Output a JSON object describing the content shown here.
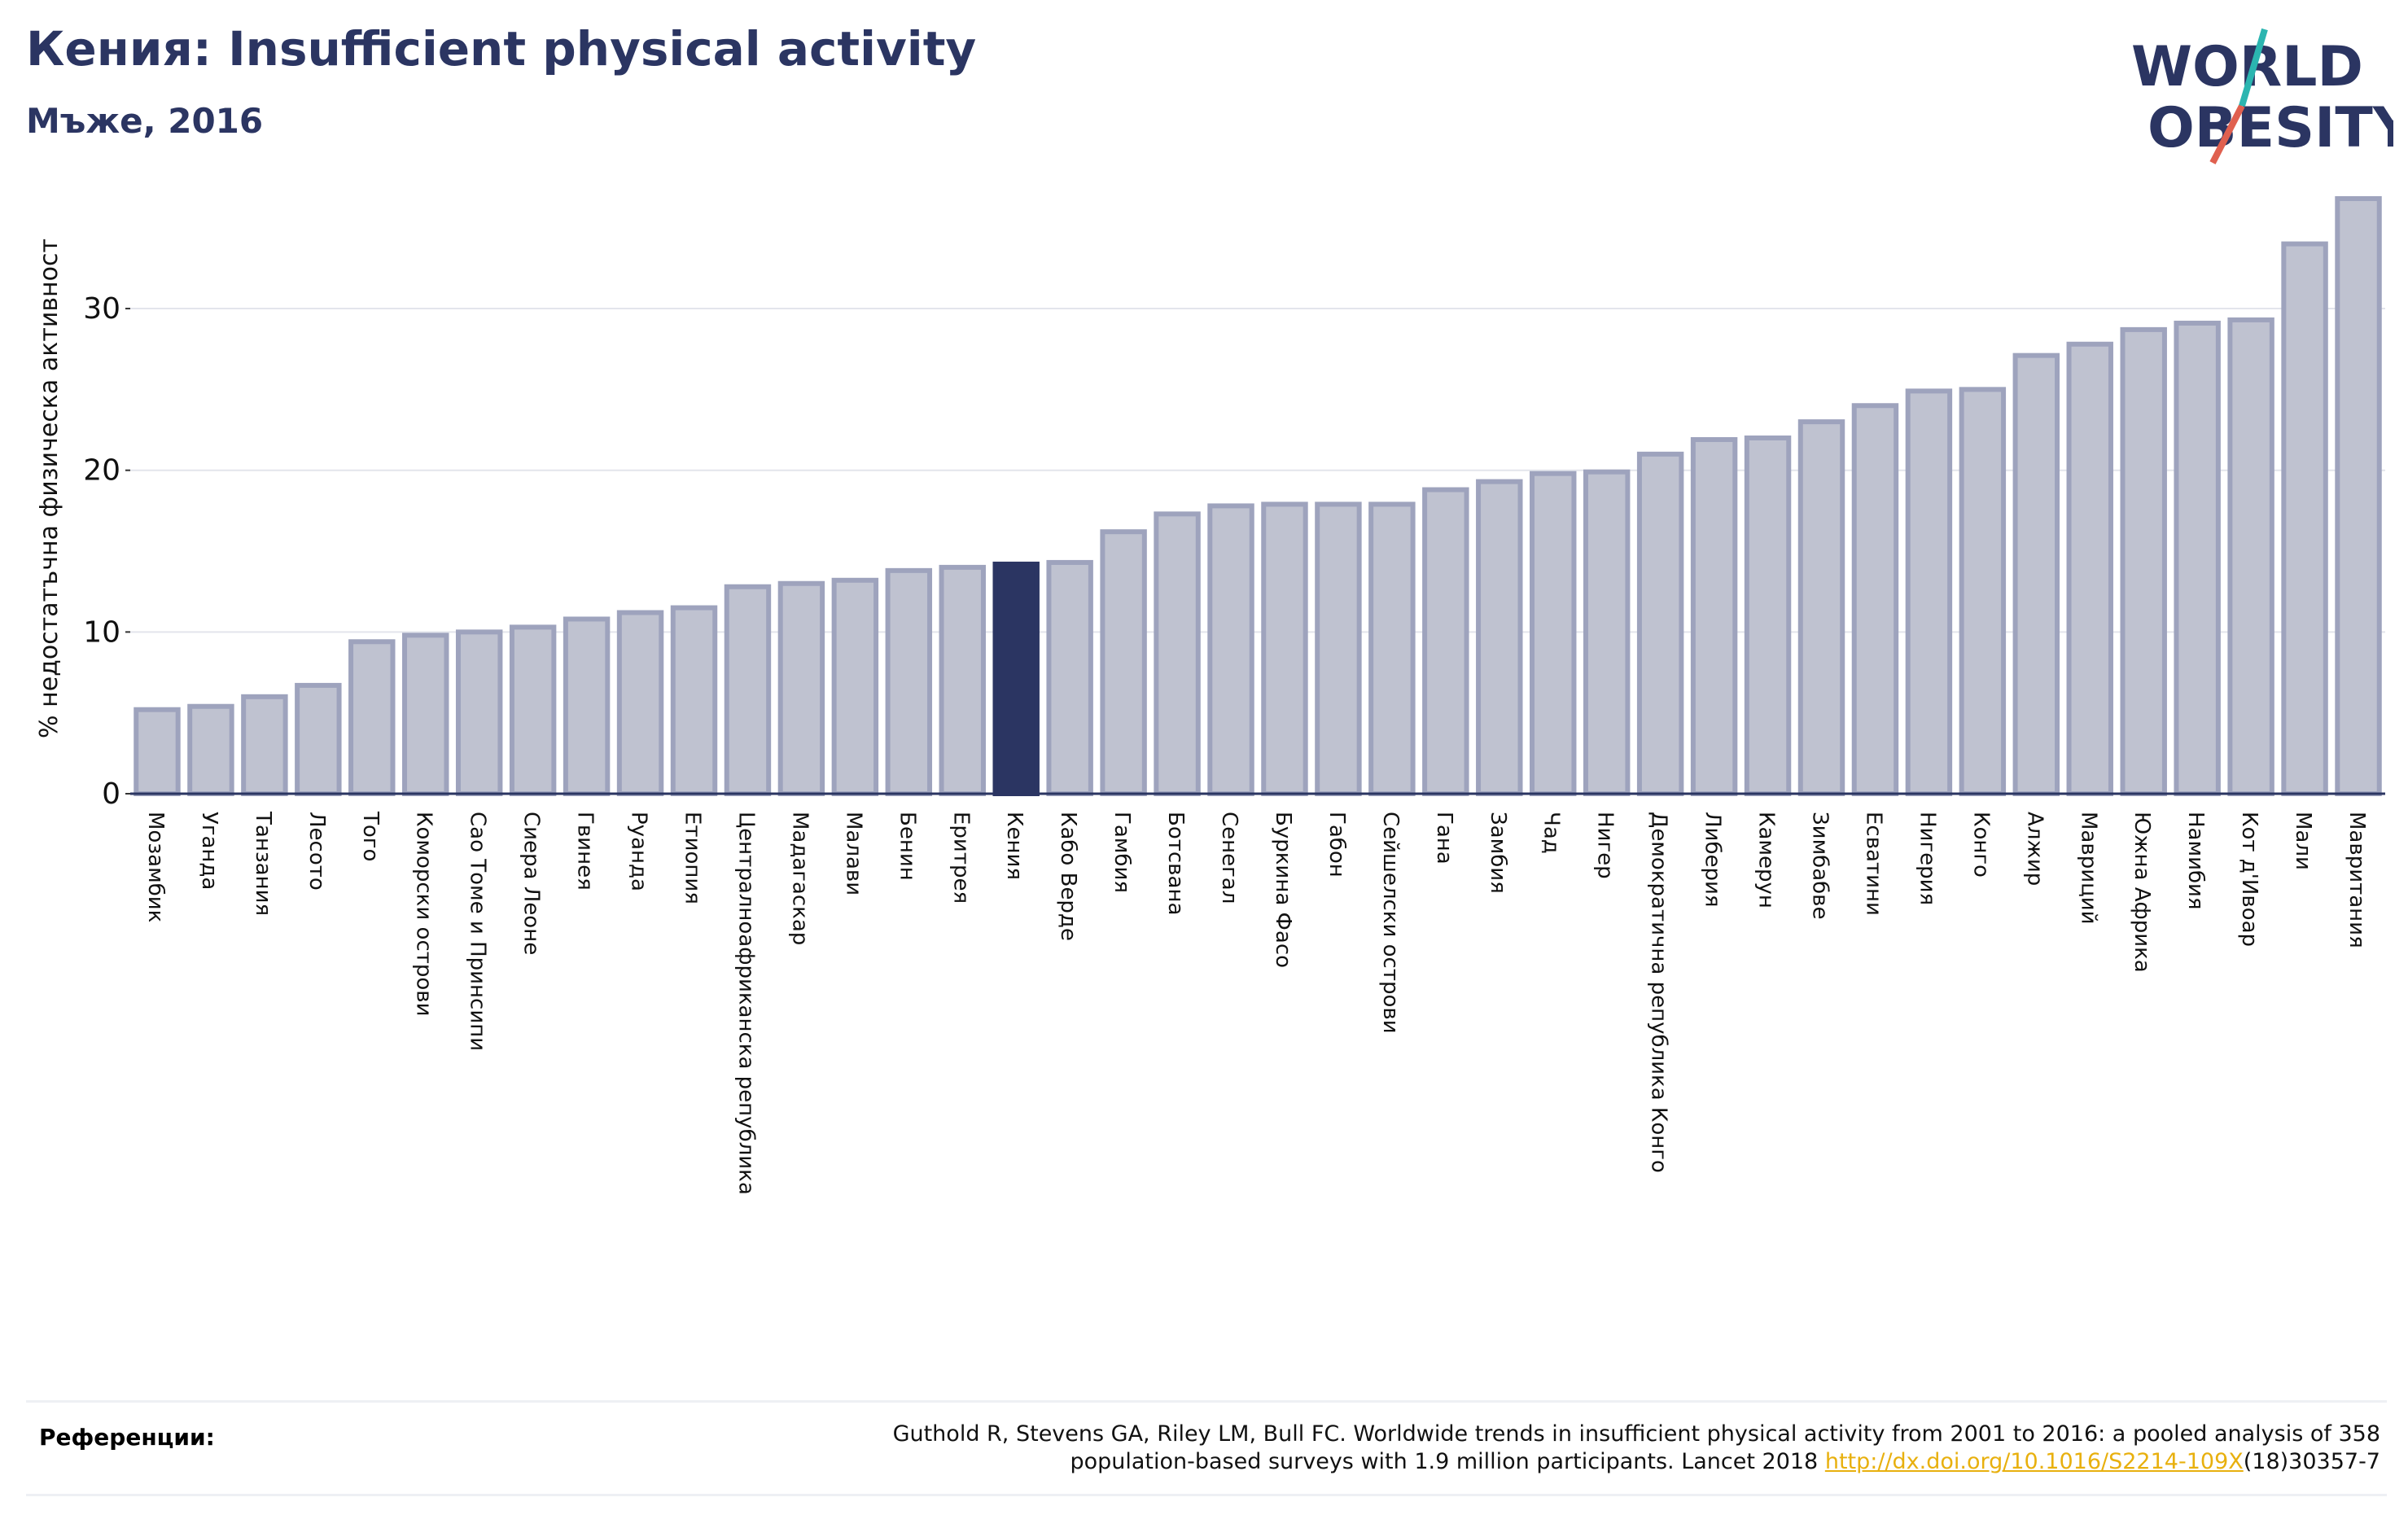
{
  "header": {
    "title": "Кения: Insufficient physical activity",
    "subtitle": "Мъже, 2016"
  },
  "logo": {
    "line1": "WORLD",
    "line2": "OBESITY",
    "colors": {
      "text": "#2b3562",
      "slash_teal": "#2bb5b0",
      "slash_coral": "#e0604f"
    }
  },
  "references": {
    "label": "Референции:",
    "text_line1": "Guthold R, Stevens GA, Riley LM, Bull FC. Worldwide trends in insufficient physical activity from 2001 to 2016: a pooled analysis of 358",
    "text_line2_pre": "population-based surveys with 1.9 million participants. Lancet 2018 ",
    "link": "http://dx.doi.org/10.1016/S2214-109X",
    "text_line2_post": "(18)30357-7"
  },
  "chart_data": {
    "type": "bar",
    "title": "",
    "xlabel": "",
    "ylabel": "% недостатъчна физическа активност",
    "ylim": [
      0,
      37
    ],
    "yticks": [
      0,
      10,
      20,
      30
    ],
    "grid": true,
    "highlight": "Кения",
    "colors": {
      "bar": "#bfc2d0",
      "bar_edge": "#9ea3bd",
      "highlight": "#2b3562",
      "grid": "#e3e5ec",
      "axis": "#2b3562"
    },
    "categories": [
      "Мозамбик",
      "Уганда",
      "Танзания",
      "Лесото",
      "Того",
      "Коморски острови",
      "Сао Томе и Принсипи",
      "Сиера Леоне",
      "Гвинея",
      "Руанда",
      "Етиопия",
      "Централноафриканска република",
      "Мадагаскар",
      "Малави",
      "Бенин",
      "Еритрея",
      "Кения",
      "Кабо Верде",
      "Гамбия",
      "Ботсвана",
      "Сенегал",
      "Буркина Фасо",
      "Габон",
      "Сейшелски острови",
      "Гана",
      "Замбия",
      "Чад",
      "Нигер",
      "Демократична република Конго",
      "Либерия",
      "Камерун",
      "Зимбабве",
      "Есватини",
      "Нигерия",
      "Конго",
      "Алжир",
      "Мавриций",
      "Южна Африка",
      "Намибия",
      "Кот д'Ивоар",
      "Мали",
      "Мавритания"
    ],
    "values": [
      5.2,
      5.4,
      6.0,
      6.7,
      9.4,
      9.8,
      10.0,
      10.3,
      10.8,
      11.2,
      11.5,
      12.8,
      13.0,
      13.2,
      13.8,
      14.0,
      14.2,
      14.3,
      16.2,
      17.3,
      17.8,
      17.9,
      17.9,
      17.9,
      18.8,
      19.3,
      19.8,
      19.9,
      21.0,
      21.9,
      22.0,
      23.0,
      24.0,
      24.9,
      25.0,
      27.1,
      27.8,
      28.7,
      29.1,
      29.3,
      34.0,
      36.8
    ]
  }
}
